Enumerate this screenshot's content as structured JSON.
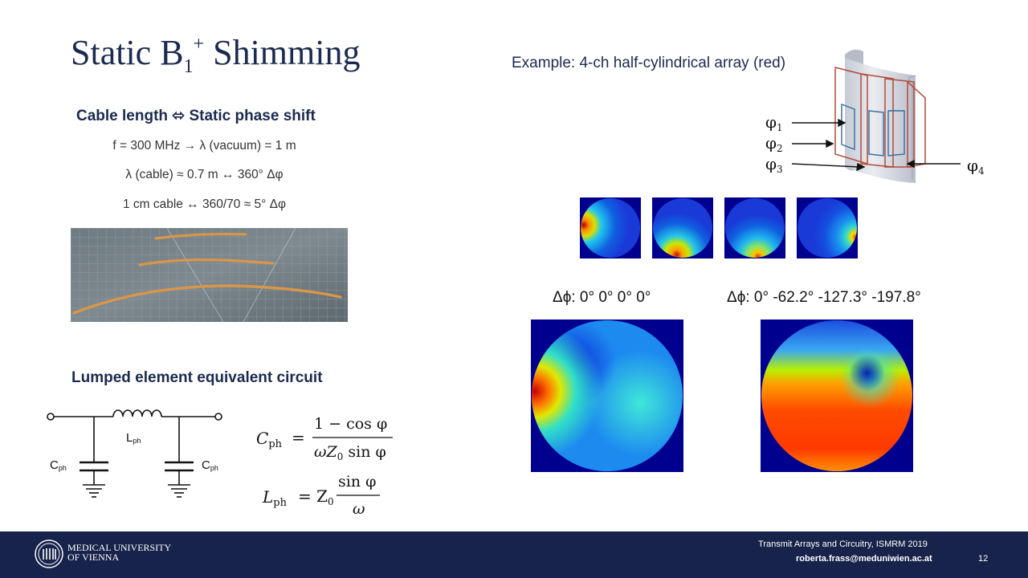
{
  "slide": {
    "title_main": "Static B",
    "title_sub": "1",
    "title_sup": "+",
    "title_rest": " Shimming",
    "page_number": "12"
  },
  "left": {
    "cable_heading": "Cable length ⬄ Static phase shift",
    "line1": "f = 300 MHz → λ (vacuum) = 1 m",
    "line2": "λ (cable) ≈ 0.7 m ↔ 360° Δφ",
    "line3": "1 cm cable ↔ 360/70 ≈ 5° Δφ",
    "circuit_heading": "Lumped element equivalent circuit",
    "circuit": {
      "inductor_label": "L",
      "inductor_sub": "ph",
      "cap_left_label": "C",
      "cap_left_sub": "ph",
      "cap_right_label": "C",
      "cap_right_sub": "ph"
    },
    "formula_c": {
      "lhs": "C",
      "lhs_sub": "ph",
      "numerator": "1 − cos φ",
      "denominator": "ωZ",
      "denominator_sub": "0",
      "denominator_rest": " sin φ"
    },
    "formula_l": {
      "lhs": "L",
      "lhs_sub": "ph",
      "factor": "= Z",
      "factor_sub": "0",
      "numerator": "sin φ",
      "denominator": "ω"
    }
  },
  "right": {
    "example_label": "Example: 4-ch half-cylindrical array (red)",
    "phi_labels": [
      {
        "base": "φ",
        "sub": "1"
      },
      {
        "base": "φ",
        "sub": "2"
      },
      {
        "base": "φ",
        "sub": "3"
      },
      {
        "base": "φ",
        "sub": "4"
      }
    ],
    "phase_label_left": "Δϕ: 0° 0° 0° 0°",
    "phase_label_right": "Δϕ: 0° -62.2° -127.3° -197.8°"
  },
  "footer": {
    "university_line1": "MEDICAL UNIVERSITY",
    "university_line2": "OF VIENNA",
    "conference": "Transmit Arrays and Circuitry, ISMRM 2019",
    "email": "roberta.frass@meduniwien.ac.at"
  },
  "colors": {
    "navy": "#17234a",
    "map_background": "#00008f",
    "coil_red": "#b24a3a"
  }
}
